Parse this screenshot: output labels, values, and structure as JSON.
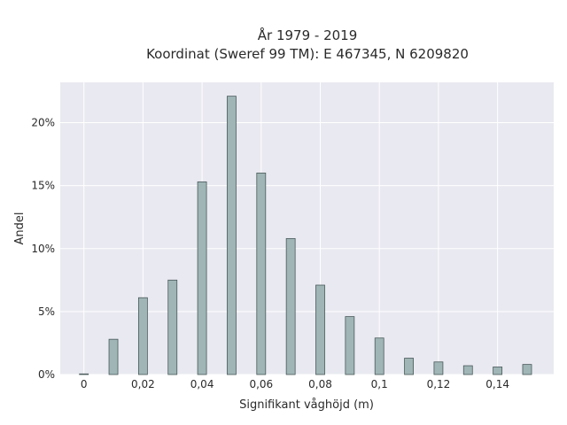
{
  "chart_data": {
    "type": "bar",
    "title_line1": "År 1979 - 2019",
    "title_line2": "Koordinat (Sweref 99 TM): E 467345, N 6209820",
    "xlabel": "Signifikant våghöjd (m)",
    "ylabel": "Andel",
    "x": [
      0,
      0.01,
      0.02,
      0.03,
      0.04,
      0.05,
      0.06,
      0.07,
      0.08,
      0.09,
      0.1,
      0.11,
      0.12,
      0.13,
      0.14,
      0.15
    ],
    "values": [
      0.05,
      2.8,
      6.1,
      7.5,
      15.3,
      22.1,
      16.0,
      10.8,
      7.1,
      4.6,
      2.9,
      1.3,
      1.0,
      0.7,
      0.6,
      0.8
    ],
    "value_unit": "percent",
    "xlim": [
      -0.008,
      0.159
    ],
    "ylim": [
      0,
      23.2
    ],
    "x_ticks": [
      0,
      0.02,
      0.04,
      0.06,
      0.08,
      0.1,
      0.12,
      0.14
    ],
    "x_tick_labels": [
      "0",
      "0,02",
      "0,04",
      "0,06",
      "0,08",
      "0,1",
      "0,12",
      "0,14"
    ],
    "y_ticks": [
      0,
      5,
      10,
      15,
      20
    ],
    "y_tick_labels": [
      "0%",
      "5%",
      "10%",
      "15%",
      "20%"
    ],
    "grid": true,
    "colors": {
      "bar_fill": "#9fb5b6",
      "bar_stroke": "#4a5a5a",
      "plot_bg": "#e9e9f1",
      "grid": "#ffffff"
    }
  }
}
